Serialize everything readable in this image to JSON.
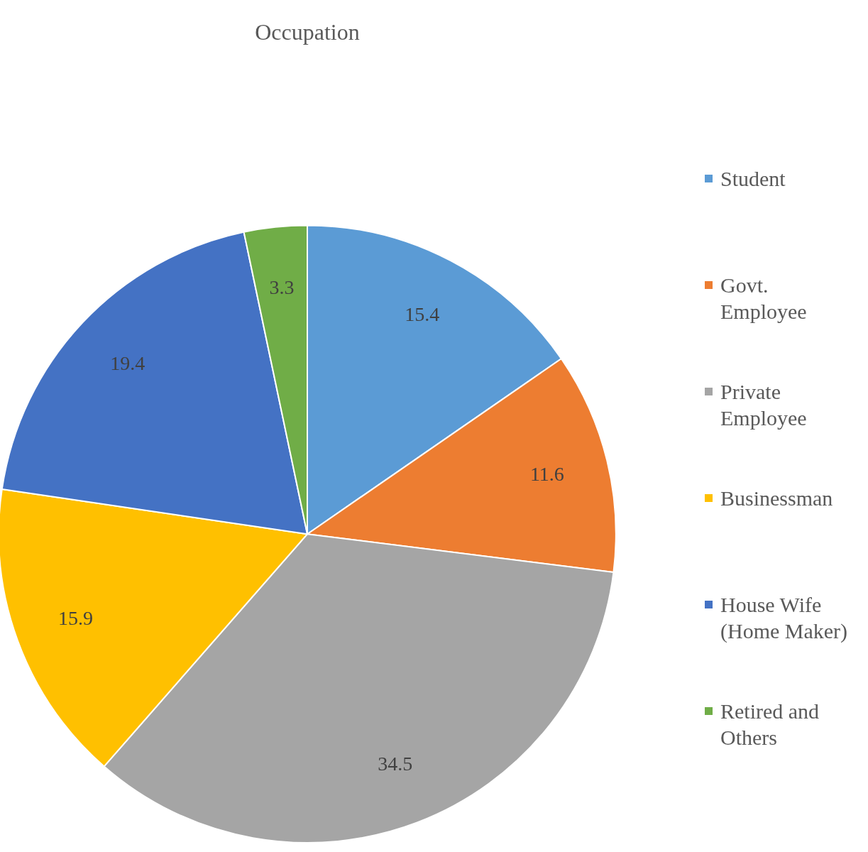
{
  "chart_data": {
    "type": "pie",
    "title": "Occupation",
    "categories": [
      "Student",
      "Govt. Employee",
      "Private Employee",
      "Businessman",
      "House Wife (Home Maker)",
      "Retired and Others"
    ],
    "values": [
      15.4,
      11.6,
      34.5,
      15.9,
      19.4,
      3.3
    ],
    "colors": [
      "#5b9bd5",
      "#ed7d31",
      "#a5a5a5",
      "#ffc000",
      "#4472c4",
      "#70ad47"
    ],
    "data_labels": true,
    "legend": "right"
  }
}
